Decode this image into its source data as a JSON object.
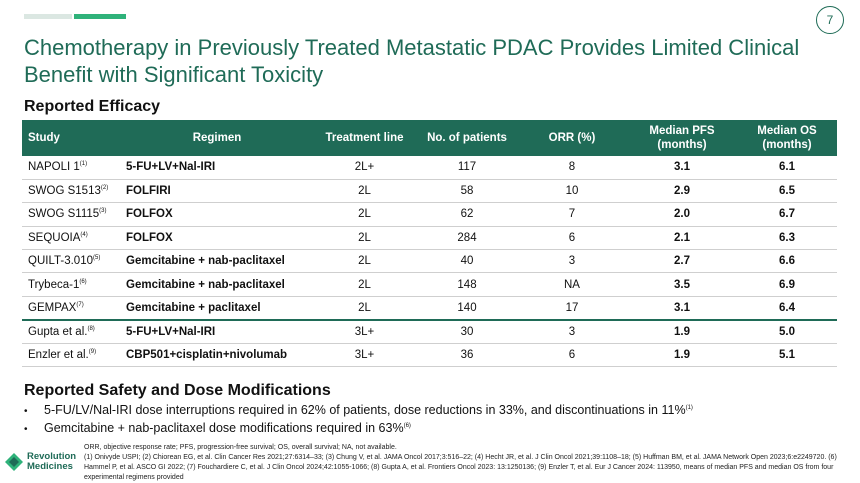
{
  "page_number": "7",
  "title": "Chemotherapy in Previously Treated Metastatic PDAC Provides Limited Clinical Benefit with Significant Toxicity",
  "efficacy_heading": "Reported Efficacy",
  "table": {
    "headers": [
      "Study",
      "Regimen",
      "Treatment line",
      "No. of patients",
      "ORR (%)",
      "Median PFS (months)",
      "Median OS (months)"
    ],
    "rows": [
      {
        "study": "NAPOLI 1",
        "ref": "(1)",
        "regimen": "5-FU+LV+Nal-IRI",
        "line": "2L+",
        "n": "117",
        "orr": "8",
        "pfs": "3.1",
        "os": "6.1"
      },
      {
        "study": "SWOG S1513",
        "ref": "(2)",
        "regimen": "FOLFIRI",
        "line": "2L",
        "n": "58",
        "orr": "10",
        "pfs": "2.9",
        "os": "6.5"
      },
      {
        "study": "SWOG S1115",
        "ref": "(3)",
        "regimen": "FOLFOX",
        "line": "2L",
        "n": "62",
        "orr": "7",
        "pfs": "2.0",
        "os": "6.7"
      },
      {
        "study": "SEQUOIA",
        "ref": "(4)",
        "regimen": "FOLFOX",
        "line": "2L",
        "n": "284",
        "orr": "6",
        "pfs": "2.1",
        "os": "6.3"
      },
      {
        "study": "QUILT-3.010",
        "ref": "(5)",
        "regimen": "Gemcitabine + nab-paclitaxel",
        "line": "2L",
        "n": "40",
        "orr": "3",
        "pfs": "2.7",
        "os": "6.6"
      },
      {
        "study": "Trybeca-1",
        "ref": "(6)",
        "regimen": "Gemcitabine + nab-paclitaxel",
        "line": "2L",
        "n": "148",
        "orr": "NA",
        "pfs": "3.5",
        "os": "6.9"
      },
      {
        "study": "GEMPAX",
        "ref": "(7)",
        "regimen": "Gemcitabine + paclitaxel",
        "line": "2L",
        "n": "140",
        "orr": "17",
        "pfs": "3.1",
        "os": "6.4"
      },
      {
        "study": "Gupta et al.",
        "ref": "(8)",
        "regimen": "5-FU+LV+Nal-IRI",
        "line": "3L+",
        "n": "30",
        "orr": "3",
        "pfs": "1.9",
        "os": "5.0"
      },
      {
        "study": "Enzler et al.",
        "ref": "(9)",
        "regimen": "CBP501+cisplatin+nivolumab",
        "line": "3L+",
        "n": "36",
        "orr": "6",
        "pfs": "1.9",
        "os": "5.1"
      }
    ]
  },
  "safety_heading": "Reported Safety and Dose Modifications",
  "bullets": [
    {
      "text": "5-FU/LV/Nal-IRI dose interruptions required in 62% of patients, dose reductions in 33%, and discontinuations in 11%",
      "ref": "(1)"
    },
    {
      "text": "Gemcitabine + nab-paclitaxel dose modifications required in 63%",
      "ref": "(6)"
    }
  ],
  "footnote_abbrev": "ORR, objective response rate; PFS, progression-free survival; OS, overall survival; NA, not available.",
  "footnote_refs": "(1) Onivyde USPI; (2) Chiorean EG, et al. Clin Cancer Res 2021;27:6314–33; (3) Chung V, et al. JAMA Oncol 2017;3:516–22; (4) Hecht JR, et al. J Clin Oncol 2021;39:1108–18; (5) Huffman BM, et al. JAMA Network Open 2023;6:e2249720. (6) Hammel P, et al. ASCO GI 2022; (7) Fouchardiere C, et al. J Clin Oncol 2024;42:1055-1066; (8) Gupta A, et al. Frontiers Oncol 2023: 13:1250136; (9) Enzler T, et al. Eur J Cancer 2024: 113950, means of median PFS and median OS from four experimental regimens provided",
  "logo": {
    "line1": "Revolution",
    "line2": "Medicines",
    "icon": "revolution-medicines-logo-icon"
  }
}
